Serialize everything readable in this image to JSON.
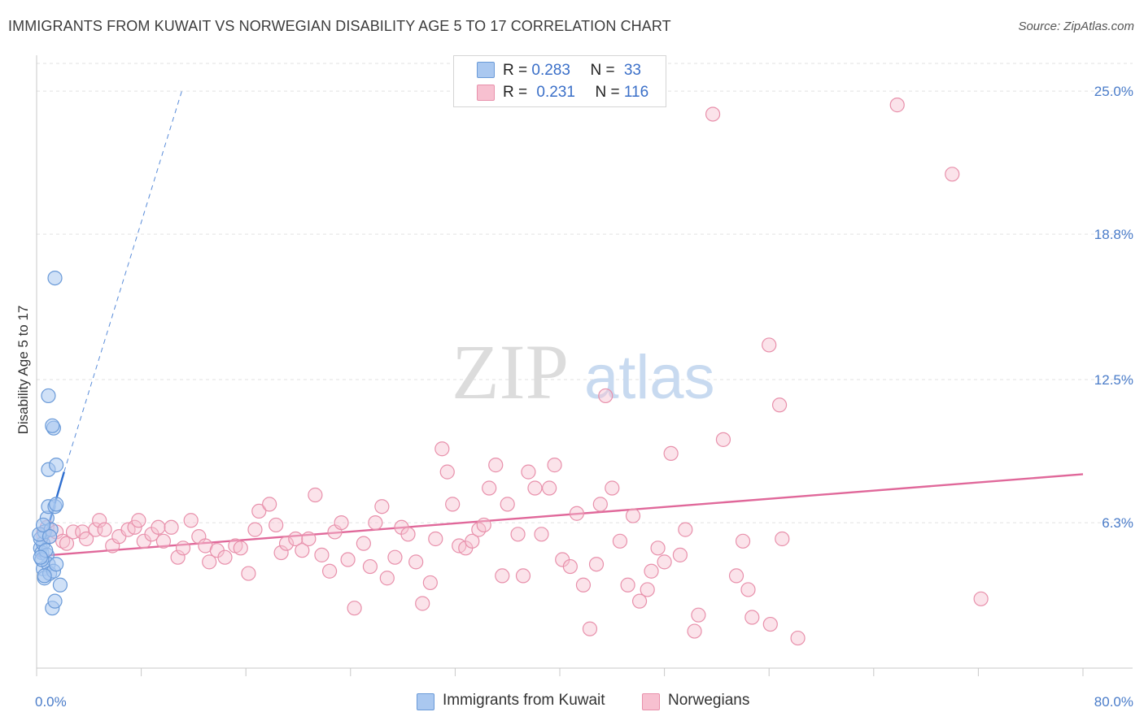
{
  "title": "IMMIGRANTS FROM KUWAIT VS NORWEGIAN DISABILITY AGE 5 TO 17 CORRELATION CHART",
  "source": "Source: ZipAtlas.com",
  "watermark": {
    "zip": "ZIP",
    "atlas": "atlas"
  },
  "legend": {
    "rows": [
      {
        "r_label": "R = ",
        "r_value": "0.283",
        "n_label": "N = ",
        "n_value": "33"
      },
      {
        "r_label": "R = ",
        "r_value": "0.231",
        "n_label": "N = ",
        "n_value": "116"
      }
    ]
  },
  "bottom_legend": [
    "Immigrants from Kuwait",
    "Norwegians"
  ],
  "colors": {
    "kuwait_fill": "#aac8f0",
    "kuwait_stroke": "#6a9ad8",
    "kuwait_line": "#2f6fd0",
    "norw_fill": "#f7c0d0",
    "norw_stroke": "#e890ab",
    "norw_line": "#e0689a",
    "tick_text": "#4a7cc9"
  },
  "chart_data": {
    "type": "scatter",
    "title": "IMMIGRANTS FROM KUWAIT VS NORWEGIAN DISABILITY AGE 5 TO 17 CORRELATION CHART",
    "xlabel": "",
    "ylabel": "Disability Age 5 to 17",
    "xlim": [
      0,
      80
    ],
    "ylim": [
      0,
      26.2
    ],
    "x_tick_labels": [
      "0.0%",
      "80.0%"
    ],
    "y_ticks": [
      6.3,
      12.5,
      18.8,
      25.0
    ],
    "y_tick_labels": [
      "6.3%",
      "12.5%",
      "18.8%",
      "25.0%"
    ],
    "grid": true,
    "series": [
      {
        "name": "Immigrants from Kuwait",
        "points": [
          [
            0.3,
            5.2
          ],
          [
            0.4,
            5.0
          ],
          [
            0.5,
            5.4
          ],
          [
            0.3,
            5.6
          ],
          [
            0.6,
            5.9
          ],
          [
            0.8,
            4.9
          ],
          [
            0.5,
            4.3
          ],
          [
            0.9,
            4.5
          ],
          [
            0.6,
            3.9
          ],
          [
            1.0,
            4.1
          ],
          [
            1.3,
            4.2
          ],
          [
            1.5,
            4.5
          ],
          [
            0.8,
            6.5
          ],
          [
            1.1,
            6.0
          ],
          [
            0.9,
            7.0
          ],
          [
            1.4,
            7.0
          ],
          [
            1.5,
            7.1
          ],
          [
            1.8,
            3.6
          ],
          [
            1.2,
            2.6
          ],
          [
            1.4,
            2.9
          ],
          [
            1.3,
            10.4
          ],
          [
            1.2,
            10.5
          ],
          [
            0.9,
            11.8
          ],
          [
            1.4,
            16.9
          ],
          [
            0.9,
            8.6
          ],
          [
            1.5,
            8.8
          ],
          [
            0.4,
            4.7
          ],
          [
            0.7,
            5.1
          ],
          [
            0.2,
            5.8
          ],
          [
            0.6,
            4.0
          ],
          [
            1.0,
            5.7
          ],
          [
            0.5,
            6.2
          ],
          [
            0.3,
            4.8
          ]
        ],
        "trend": {
          "x": [
            0.2,
            2.1
          ],
          "y": [
            4.8,
            8.5
          ]
        },
        "trend_extension": {
          "x": [
            2.1,
            11.1
          ],
          "y": [
            8.5,
            25.0
          ]
        }
      },
      {
        "name": "Norwegians",
        "points": [
          [
            0.5,
            5.8
          ],
          [
            0.8,
            6.1
          ],
          [
            1.0,
            5.7
          ],
          [
            1.5,
            5.9
          ],
          [
            2.0,
            5.5
          ],
          [
            2.3,
            5.4
          ],
          [
            2.8,
            5.9
          ],
          [
            3.5,
            5.9
          ],
          [
            3.8,
            5.6
          ],
          [
            4.5,
            6.0
          ],
          [
            4.8,
            6.4
          ],
          [
            5.2,
            6.0
          ],
          [
            5.8,
            5.3
          ],
          [
            6.3,
            5.7
          ],
          [
            7.0,
            6.0
          ],
          [
            7.5,
            6.1
          ],
          [
            7.8,
            6.4
          ],
          [
            8.2,
            5.5
          ],
          [
            8.8,
            5.8
          ],
          [
            9.3,
            6.1
          ],
          [
            9.7,
            5.5
          ],
          [
            10.3,
            6.1
          ],
          [
            10.8,
            4.8
          ],
          [
            11.2,
            5.2
          ],
          [
            11.8,
            6.4
          ],
          [
            12.4,
            5.7
          ],
          [
            12.9,
            5.3
          ],
          [
            13.2,
            4.6
          ],
          [
            13.8,
            5.1
          ],
          [
            14.4,
            4.8
          ],
          [
            15.2,
            5.3
          ],
          [
            15.6,
            5.2
          ],
          [
            16.2,
            4.1
          ],
          [
            16.7,
            6.0
          ],
          [
            17.0,
            6.8
          ],
          [
            17.8,
            7.1
          ],
          [
            18.3,
            6.2
          ],
          [
            18.7,
            5.0
          ],
          [
            19.1,
            5.4
          ],
          [
            19.8,
            5.6
          ],
          [
            20.3,
            5.1
          ],
          [
            20.8,
            5.6
          ],
          [
            21.3,
            7.5
          ],
          [
            21.8,
            4.9
          ],
          [
            22.4,
            4.2
          ],
          [
            22.8,
            5.9
          ],
          [
            23.3,
            6.3
          ],
          [
            23.8,
            4.7
          ],
          [
            24.3,
            2.6
          ],
          [
            25.0,
            5.4
          ],
          [
            25.5,
            4.4
          ],
          [
            25.9,
            6.3
          ],
          [
            26.4,
            7.0
          ],
          [
            26.8,
            3.9
          ],
          [
            27.4,
            4.8
          ],
          [
            27.9,
            6.1
          ],
          [
            28.4,
            5.8
          ],
          [
            29.0,
            4.6
          ],
          [
            29.5,
            2.8
          ],
          [
            30.1,
            3.7
          ],
          [
            30.5,
            5.6
          ],
          [
            31.0,
            9.5
          ],
          [
            31.4,
            8.5
          ],
          [
            31.8,
            7.1
          ],
          [
            32.3,
            5.3
          ],
          [
            32.8,
            5.2
          ],
          [
            33.3,
            5.5
          ],
          [
            33.8,
            6.0
          ],
          [
            34.2,
            6.2
          ],
          [
            34.6,
            7.8
          ],
          [
            35.1,
            8.8
          ],
          [
            35.6,
            4.0
          ],
          [
            36.0,
            7.1
          ],
          [
            36.8,
            5.8
          ],
          [
            37.2,
            4.0
          ],
          [
            37.6,
            8.5
          ],
          [
            38.1,
            7.8
          ],
          [
            38.6,
            5.8
          ],
          [
            39.2,
            7.8
          ],
          [
            39.6,
            8.8
          ],
          [
            40.2,
            4.7
          ],
          [
            40.8,
            4.4
          ],
          [
            41.3,
            6.7
          ],
          [
            41.8,
            3.6
          ],
          [
            42.3,
            1.7
          ],
          [
            42.8,
            4.5
          ],
          [
            43.1,
            7.1
          ],
          [
            43.5,
            11.8
          ],
          [
            44.0,
            7.8
          ],
          [
            44.6,
            5.5
          ],
          [
            45.2,
            3.6
          ],
          [
            45.6,
            6.6
          ],
          [
            46.1,
            2.9
          ],
          [
            46.7,
            3.4
          ],
          [
            47.0,
            4.2
          ],
          [
            47.5,
            5.2
          ],
          [
            48.0,
            4.6
          ],
          [
            48.5,
            9.3
          ],
          [
            49.2,
            4.9
          ],
          [
            49.6,
            6.0
          ],
          [
            50.3,
            1.6
          ],
          [
            50.6,
            2.3
          ],
          [
            51.7,
            24.0
          ],
          [
            52.5,
            9.9
          ],
          [
            53.5,
            4.0
          ],
          [
            54.0,
            5.5
          ],
          [
            54.4,
            3.4
          ],
          [
            54.7,
            2.2
          ],
          [
            56.0,
            14.0
          ],
          [
            56.1,
            1.9
          ],
          [
            56.8,
            11.4
          ],
          [
            57.0,
            5.6
          ],
          [
            58.2,
            1.3
          ],
          [
            65.8,
            24.4
          ],
          [
            70.0,
            21.4
          ],
          [
            72.2,
            3.0
          ]
        ],
        "trend": {
          "x": [
            0,
            80
          ],
          "y": [
            4.85,
            8.4
          ]
        }
      }
    ]
  }
}
